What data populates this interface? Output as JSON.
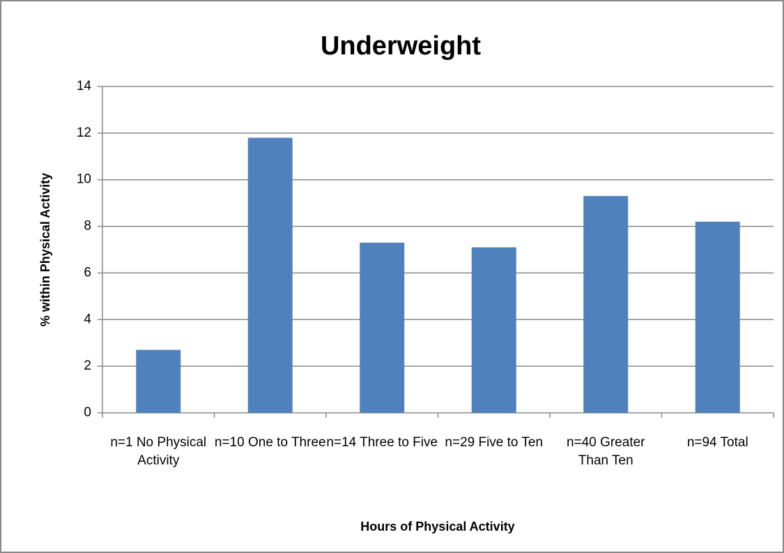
{
  "chart_data": {
    "type": "bar",
    "title": "Underweight",
    "x_label": "Hours of Physical Activity",
    "y_label": "% within Physical Activity",
    "categories": [
      "n=1 No Physical Activity",
      "n=10 One to Three",
      "n=14 Three to Five",
      "n=29 Five to Ten",
      "n=40 Greater Than Ten",
      "n=94 Total"
    ],
    "values": [
      2.7,
      11.8,
      7.3,
      7.1,
      9.3,
      8.2
    ],
    "color": "#4f81bd",
    "ylim": [
      0,
      14
    ],
    "yticks": [
      0,
      2,
      4,
      6,
      8,
      10,
      12,
      14
    ],
    "grid": true
  }
}
